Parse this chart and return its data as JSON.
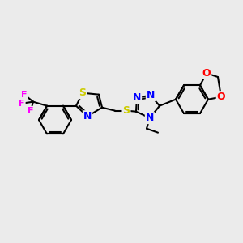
{
  "background_color": "#ebebeb",
  "atoms": {
    "C": {
      "color": "#000000"
    },
    "N": {
      "color": "#0000ff"
    },
    "S": {
      "color": "#cccc00"
    },
    "O": {
      "color": "#ff0000"
    },
    "F": {
      "color": "#ff00ff"
    }
  },
  "bond_color": "#000000",
  "bond_width": 1.5
}
